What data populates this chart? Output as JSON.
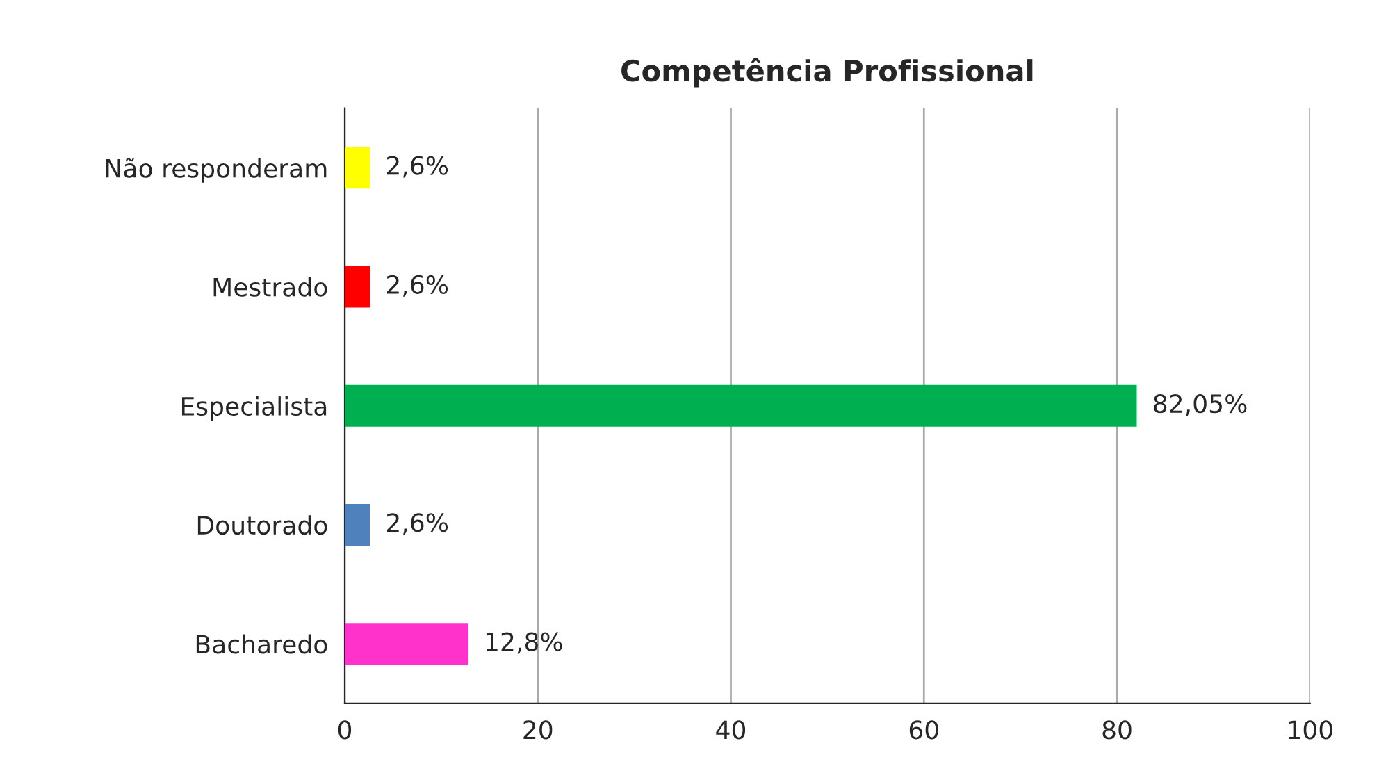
{
  "chart_data": {
    "type": "bar",
    "orientation": "horizontal",
    "title": "Competência Profissional",
    "categories": [
      "Não responderam",
      "Mestrado",
      "Especialista",
      "Doutorado",
      "Bacharedo"
    ],
    "values": [
      2.6,
      2.6,
      82.05,
      2.6,
      12.8
    ],
    "colors": [
      "#ffff00",
      "#ff0000",
      "#00b050",
      "#4f81bd",
      "#ff33cc"
    ],
    "value_labels": [
      "2,6%",
      "2,6%",
      "82,05%",
      "2,6%",
      "12,8%"
    ],
    "xlim": [
      0,
      100
    ],
    "xticks": [
      0,
      20,
      40,
      60,
      80,
      100
    ],
    "grid": "x",
    "legend": false
  }
}
